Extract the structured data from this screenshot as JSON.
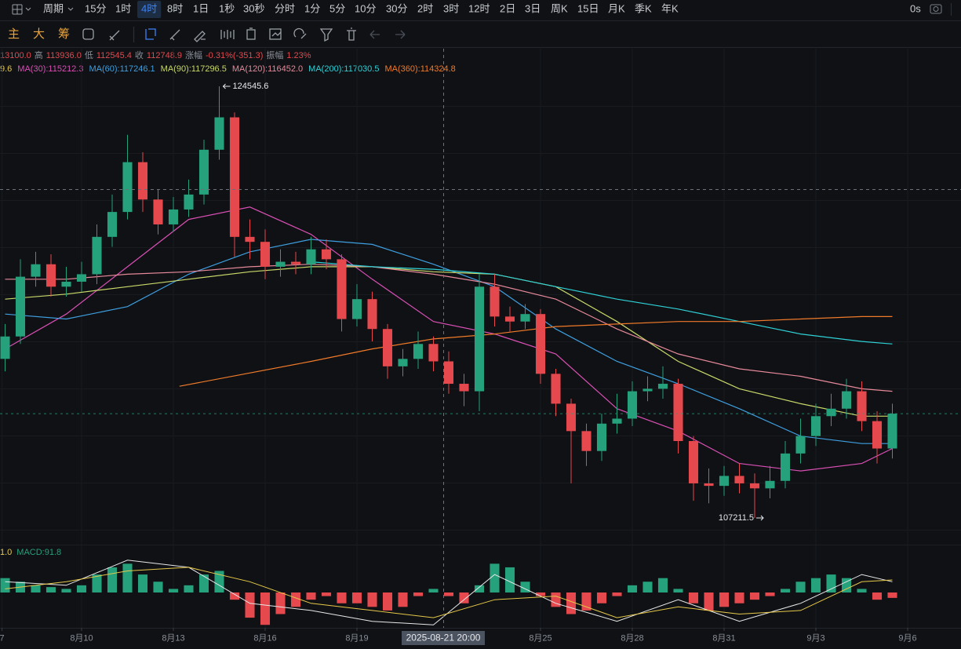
{
  "toolbar": {
    "period_label": "周期",
    "periods": [
      "15分",
      "1时",
      "4时",
      "8时",
      "1日",
      "1秒",
      "30秒",
      "分时",
      "1分",
      "5分",
      "10分",
      "30分",
      "2时",
      "3时",
      "12时",
      "2日",
      "3日",
      "周K",
      "15日",
      "月K",
      "季K",
      "年K"
    ],
    "selected_index": 2,
    "right_text": "0s",
    "indicators": [
      "主",
      "大",
      "筹"
    ]
  },
  "header": {
    "ohlc": [
      {
        "text": "13100.0",
        "color": "#e5484d"
      },
      {
        "text": "高",
        "color": "#8a8f98"
      },
      {
        "text": "113936.0",
        "color": "#e5484d"
      },
      {
        "text": "低",
        "color": "#8a8f98"
      },
      {
        "text": "112545.4",
        "color": "#e5484d"
      },
      {
        "text": "收",
        "color": "#8a8f98"
      },
      {
        "text": "112748.9",
        "color": "#e5484d"
      },
      {
        "text": "涨幅",
        "color": "#8a8f98"
      },
      {
        "text": "-0.31%(-351.3)",
        "color": "#e5484d"
      },
      {
        "text": "振幅",
        "color": "#8a8f98"
      },
      {
        "text": "1.23%",
        "color": "#e5484d"
      }
    ],
    "truncated_legend": {
      "text": "9.6",
      "color": "#e6c84a"
    }
  },
  "chart_data": [
    {
      "type": "candlestick",
      "up_color": "#25a17c",
      "down_color": "#e5484d",
      "open": [
        113600,
        114500,
        116900,
        117400,
        116500,
        116700,
        117000,
        118500,
        119500,
        121500,
        120000,
        119000,
        119600,
        120200,
        122000,
        123300,
        118500,
        118300,
        117300,
        117500,
        117400,
        118000,
        117600,
        115200,
        116000,
        114800,
        113300,
        113600,
        114200,
        113500,
        112600,
        112300,
        116500,
        115300,
        115100,
        115400,
        113000,
        111800,
        110700,
        109900,
        111000,
        111200,
        112300,
        112400,
        112600,
        110300,
        108600,
        108500,
        108900,
        108600,
        108400,
        108700,
        109800,
        110500,
        111300,
        111600,
        112300,
        111100,
        110000
      ],
      "high": [
        115000,
        117600,
        117900,
        117800,
        117300,
        117500,
        119000,
        120200,
        122600,
        121900,
        120400,
        120100,
        120800,
        122400,
        124545.6,
        123500,
        119200,
        118800,
        118000,
        117900,
        118500,
        118400,
        117800,
        116600,
        116300,
        115000,
        114000,
        114700,
        114500,
        113900,
        113000,
        117000,
        117000,
        115700,
        115800,
        115600,
        113200,
        112000,
        111000,
        111400,
        112200,
        112700,
        112900,
        113300,
        112800,
        110500,
        109200,
        109300,
        109400,
        109000,
        109300,
        110300,
        111200,
        111800,
        112200,
        112800,
        112700,
        111500,
        111800
      ],
      "low": [
        113100,
        114200,
        116500,
        116100,
        116100,
        116300,
        116600,
        118100,
        119200,
        119500,
        118600,
        118700,
        119300,
        119800,
        121600,
        117700,
        117600,
        116800,
        116900,
        117000,
        117000,
        117200,
        114700,
        114900,
        114300,
        112800,
        112900,
        113200,
        113100,
        112200,
        111700,
        111500,
        114900,
        114700,
        114800,
        112600,
        111300,
        108600,
        109300,
        109500,
        110600,
        110900,
        111900,
        112000,
        109800,
        107900,
        107800,
        108100,
        108200,
        107211.5,
        108000,
        108400,
        109400,
        110100,
        110900,
        111200,
        110700,
        109400,
        109600
      ],
      "close": [
        114500,
        116900,
        117400,
        116500,
        116700,
        117000,
        118500,
        119500,
        121500,
        120000,
        119000,
        119600,
        120200,
        122000,
        123300,
        118500,
        118300,
        117300,
        117500,
        117400,
        118000,
        117600,
        115200,
        116000,
        114800,
        113300,
        113600,
        114200,
        113500,
        112600,
        112300,
        116500,
        115300,
        115100,
        115400,
        113000,
        111800,
        110700,
        109900,
        111000,
        111200,
        112300,
        112400,
        112600,
        110300,
        108600,
        108500,
        108900,
        108600,
        108400,
        108700,
        109800,
        110500,
        111300,
        111600,
        112300,
        111100,
        110000,
        111400
      ],
      "ylim": [
        106266,
        126059
      ],
      "xlim": [
        -0.333,
        62.487
      ],
      "xticks": [
        {
          "value": -0.2,
          "label": "7"
        },
        {
          "value": 5,
          "label": "8月10"
        },
        {
          "value": 11,
          "label": "8月13"
        },
        {
          "value": 17,
          "label": "8月16"
        },
        {
          "value": 23,
          "label": "8月19"
        },
        {
          "value": 35,
          "label": "8月25"
        },
        {
          "value": 41,
          "label": "8月28"
        },
        {
          "value": 47,
          "label": "8月31"
        },
        {
          "value": 53,
          "label": "9月3"
        },
        {
          "value": 59,
          "label": "9月6"
        }
      ],
      "crosshair_label": "2025-08-21 20:00",
      "series": [
        {
          "name": "MA(30):115212.3",
          "color": "#d94fb4",
          "x": [
            0,
            4,
            8,
            12,
            16,
            20,
            24,
            28,
            32,
            36,
            40,
            44,
            48,
            52,
            56,
            58
          ],
          "values": [
            114000,
            115400,
            117300,
            119200,
            119700,
            118600,
            116800,
            115100,
            114600,
            113800,
            111600,
            110700,
            109400,
            109100,
            109400,
            110000
          ]
        },
        {
          "name": "MA(60):117246.1",
          "color": "#3f9fe0",
          "x": [
            0,
            4,
            8,
            12,
            16,
            20,
            24,
            28,
            32,
            36,
            40,
            44,
            48,
            52,
            56,
            58
          ],
          "values": [
            115400,
            115200,
            115700,
            117000,
            117900,
            118400,
            118200,
            117400,
            116500,
            114800,
            113500,
            112600,
            111600,
            110500,
            110200,
            110200
          ]
        },
        {
          "name": "MA(90):117296.5",
          "color": "#c9d86a",
          "x": [
            0,
            4,
            8,
            12,
            16,
            20,
            24,
            28,
            32,
            36,
            40,
            44,
            48,
            52,
            56,
            58
          ],
          "values": [
            116000,
            116200,
            116500,
            116800,
            117100,
            117300,
            117300,
            117100,
            117000,
            116500,
            115100,
            113500,
            112400,
            111800,
            111300,
            111300
          ]
        },
        {
          "name": "MA(120):116452.0",
          "color": "#e7899a",
          "x": [
            0,
            4,
            8,
            12,
            16,
            20,
            24,
            28,
            32,
            36,
            40,
            44,
            48,
            52,
            56,
            58
          ],
          "values": [
            116800,
            116800,
            117000,
            117100,
            117300,
            117400,
            117300,
            117000,
            116600,
            116000,
            114800,
            113800,
            113200,
            112900,
            112400,
            112300
          ]
        },
        {
          "name": "MA(200):117030.5",
          "color": "#2fd0d6",
          "x": [
            20,
            24,
            28,
            32,
            36,
            40,
            44,
            48,
            52,
            56,
            58
          ],
          "values": [
            117500,
            117300,
            117200,
            117000,
            116500,
            116000,
            115600,
            115100,
            114600,
            114300,
            114200
          ]
        },
        {
          "name": "MA(360):114324.8",
          "color": "#f07a2a",
          "x": [
            11.4,
            20,
            24,
            28,
            32,
            36,
            40,
            44,
            48,
            52,
            56,
            58
          ],
          "values": [
            112500,
            113500,
            114000,
            114400,
            114600,
            114900,
            115000,
            115100,
            115100,
            115200,
            115300,
            115300
          ]
        }
      ]
    },
    {
      "type": "bar",
      "legend": [
        {
          "text": "1.0",
          "color": "#e6c84a"
        },
        {
          "text": "MACD:91.8",
          "color": "#25a17c"
        }
      ],
      "up_color": "#25a17c",
      "down_color": "#e5484d",
      "ylim": [
        -1200,
        1200
      ],
      "values": [
        400,
        300,
        200,
        150,
        100,
        200,
        500,
        700,
        800,
        500,
        300,
        100,
        200,
        500,
        600,
        -200,
        -700,
        -900,
        -600,
        -400,
        -200,
        -100,
        -300,
        -300,
        -400,
        -500,
        -400,
        -100,
        100,
        -100,
        -300,
        200,
        800,
        700,
        300,
        -100,
        -400,
        -600,
        -500,
        -300,
        -100,
        200,
        300,
        400,
        100,
        -300,
        -500,
        -400,
        -300,
        -200,
        -100,
        100,
        300,
        400,
        500,
        400,
        100,
        -200,
        -150
      ],
      "series": [
        {
          "color": "#e8e8e8",
          "x": [
            0,
            4,
            8,
            12,
            16,
            20,
            24,
            28,
            32,
            36,
            40,
            44,
            48,
            52,
            56,
            58
          ],
          "values": [
            300,
            200,
            900,
            700,
            -300,
            -500,
            -800,
            -900,
            500,
            -300,
            -800,
            -200,
            -800,
            -300,
            500,
            300
          ]
        },
        {
          "color": "#e6c84a",
          "x": [
            0,
            4,
            8,
            12,
            16,
            20,
            24,
            28,
            32,
            36,
            40,
            44,
            48,
            52,
            56,
            58
          ],
          "values": [
            100,
            300,
            600,
            700,
            300,
            -300,
            -500,
            -700,
            -200,
            -100,
            -700,
            -400,
            -600,
            -500,
            300,
            350
          ]
        }
      ]
    }
  ]
}
